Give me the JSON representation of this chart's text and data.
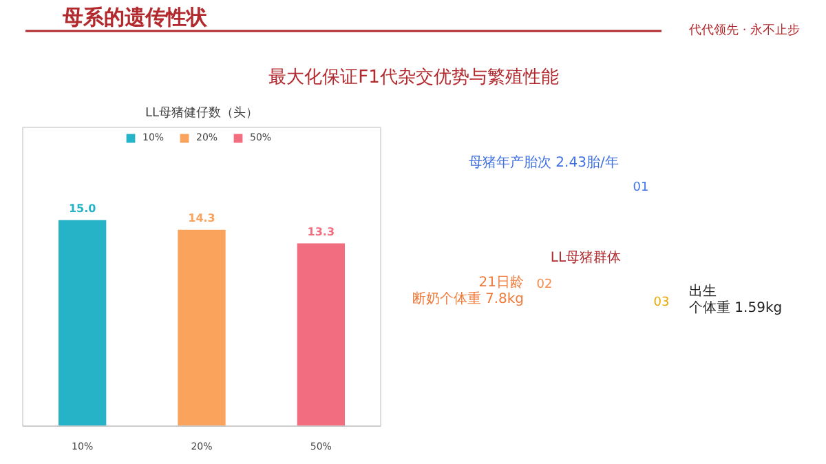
{
  "chart_data": {
    "type": "bar",
    "title": "LL母猪健仔数（头）",
    "categories": [
      "10%",
      "20%",
      "50%"
    ],
    "series": [
      {
        "name": "10%",
        "color": "#26b3c8",
        "values": [
          15.0,
          null,
          null
        ],
        "value_labels": [
          "15.0",
          null,
          null
        ]
      },
      {
        "name": "20%",
        "color": "#f9a35c",
        "values": [
          null,
          14.3,
          null
        ],
        "value_labels": [
          null,
          "14.3",
          null
        ]
      },
      {
        "name": "50%",
        "color": "#f26d80",
        "values": [
          null,
          null,
          13.3
        ],
        "value_labels": [
          null,
          null,
          "13.3"
        ]
      }
    ],
    "legend": "top",
    "annotations": [
      "母系的遗传性状",
      "代代领先 · 永不止步",
      "最大化保证F1代杂交优势与繁殖性能",
      "01",
      "母猪年产胎次 2.43胎/年",
      "02",
      "21日龄",
      "断奶个体重 7.8kg",
      "03",
      "出生",
      "个体重 1.59kg",
      "LL母猪群体"
    ]
  }
}
